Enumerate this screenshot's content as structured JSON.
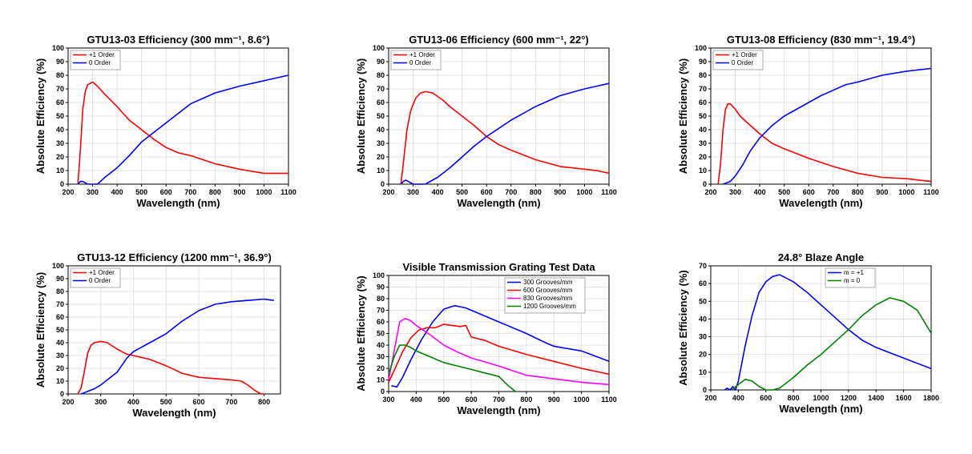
{
  "chart_data": [
    {
      "type": "line",
      "title": "GTU13-03 Efficiency (300 mm⁻¹, 8.6°)",
      "xlabel": "Wavelength (nm)",
      "ylabel": "Absolute Efficiency (%)",
      "xlim": [
        200,
        1100
      ],
      "ylim": [
        0,
        100
      ],
      "xticks": [
        200,
        300,
        400,
        500,
        600,
        700,
        800,
        900,
        1000,
        1100
      ],
      "yticks": [
        0,
        10,
        20,
        30,
        40,
        50,
        60,
        70,
        80,
        90,
        100
      ],
      "grid": true,
      "legend_position": "top-left",
      "series": [
        {
          "name": "+1 Order",
          "color": "#ff0000",
          "x": [
            240,
            250,
            260,
            270,
            280,
            300,
            320,
            350,
            400,
            450,
            500,
            550,
            600,
            650,
            700,
            750,
            800,
            900,
            1000,
            1050,
            1100
          ],
          "y": [
            0,
            25,
            55,
            68,
            73,
            75,
            72,
            66,
            57,
            47,
            40,
            33,
            27,
            23,
            21,
            18,
            15,
            11,
            8,
            8,
            8
          ]
        },
        {
          "name": "0 Order",
          "color": "#0000ff",
          "x": [
            240,
            250,
            260,
            270,
            280,
            300,
            320,
            350,
            400,
            450,
            500,
            550,
            600,
            650,
            700,
            750,
            800,
            900,
            1000,
            1050,
            1100
          ],
          "y": [
            0,
            2,
            2,
            1,
            0,
            0,
            0,
            5,
            12,
            21,
            31,
            38,
            45,
            52,
            59,
            63,
            67,
            72,
            76,
            78,
            80
          ]
        }
      ]
    },
    {
      "type": "line",
      "title": "GTU13-06 Efficiency (600 mm⁻¹, 22°)",
      "xlabel": "Wavelength (nm)",
      "ylabel": "Absolute Efficiency (%)",
      "xlim": [
        200,
        1100
      ],
      "ylim": [
        0,
        100
      ],
      "xticks": [
        200,
        300,
        400,
        500,
        600,
        700,
        800,
        900,
        1000,
        1100
      ],
      "yticks": [
        0,
        10,
        20,
        30,
        40,
        50,
        60,
        70,
        80,
        90,
        100
      ],
      "grid": true,
      "legend_position": "top-left",
      "series": [
        {
          "name": "+1 Order",
          "color": "#ff0000",
          "x": [
            250,
            260,
            275,
            290,
            310,
            330,
            350,
            380,
            420,
            450,
            500,
            550,
            600,
            650,
            700,
            800,
            900,
            1000,
            1050,
            1100
          ],
          "y": [
            0,
            15,
            40,
            54,
            63,
            67,
            68,
            67,
            62,
            57,
            50,
            43,
            35,
            29,
            25,
            18,
            13,
            11,
            10,
            8
          ]
        },
        {
          "name": "0 Order",
          "color": "#0000ff",
          "x": [
            250,
            260,
            270,
            280,
            300,
            330,
            350,
            400,
            450,
            500,
            550,
            600,
            650,
            700,
            800,
            900,
            1000,
            1050,
            1100
          ],
          "y": [
            0,
            2,
            3,
            2,
            0,
            0,
            0,
            5,
            12,
            20,
            28,
            35,
            41,
            47,
            57,
            65,
            70,
            72,
            74
          ]
        }
      ]
    },
    {
      "type": "line",
      "title": "GTU13-08 Efficiency (830 mm⁻¹, 19.4°)",
      "xlabel": "Wavelength (nm)",
      "ylabel": "Absolute Efficiency (%)",
      "xlim": [
        200,
        1100
      ],
      "ylim": [
        0,
        100
      ],
      "xticks": [
        200,
        300,
        400,
        500,
        600,
        700,
        800,
        900,
        1000,
        1100
      ],
      "yticks": [
        0,
        10,
        20,
        30,
        40,
        50,
        60,
        70,
        80,
        90,
        100
      ],
      "grid": true,
      "legend_position": "top-left",
      "series": [
        {
          "name": "+1 Order",
          "color": "#ff0000",
          "x": [
            230,
            240,
            250,
            260,
            270,
            280,
            300,
            320,
            350,
            400,
            450,
            500,
            600,
            700,
            800,
            900,
            1000,
            1050,
            1100
          ],
          "y": [
            0,
            15,
            40,
            55,
            59,
            59,
            55,
            50,
            45,
            37,
            30,
            26,
            19,
            13,
            8,
            5,
            4,
            3,
            2
          ]
        },
        {
          "name": "0 Order",
          "color": "#0000ff",
          "x": [
            250,
            280,
            300,
            330,
            360,
            400,
            450,
            500,
            550,
            600,
            650,
            700,
            750,
            800,
            900,
            1000,
            1050,
            1100
          ],
          "y": [
            0,
            2,
            6,
            14,
            24,
            34,
            43,
            50,
            55,
            60,
            65,
            69,
            73,
            75,
            80,
            83,
            84,
            85
          ]
        }
      ]
    },
    {
      "type": "line",
      "title": "GTU13-12 Efficiency (1200 mm⁻¹, 36.9°)",
      "xlabel": "Wavelength (nm)",
      "ylabel": "Absolute Efficiency (%)",
      "xlim": [
        200,
        850
      ],
      "ylim": [
        0,
        100
      ],
      "xticks": [
        200,
        300,
        400,
        500,
        600,
        700,
        800
      ],
      "yticks": [
        0,
        10,
        20,
        30,
        40,
        50,
        60,
        70,
        80,
        90,
        100
      ],
      "grid": true,
      "legend_position": "top-left",
      "series": [
        {
          "name": "+1 Order",
          "color": "#ff0000",
          "x": [
            230,
            240,
            250,
            260,
            270,
            280,
            300,
            320,
            350,
            380,
            400,
            450,
            500,
            550,
            600,
            650,
            700,
            730,
            750,
            770,
            790,
            800
          ],
          "y": [
            0,
            5,
            18,
            32,
            38,
            40,
            41,
            40,
            35,
            31,
            30,
            27,
            22,
            16,
            13,
            12,
            11,
            10,
            7,
            3,
            0,
            0
          ]
        },
        {
          "name": "0 Order",
          "color": "#0000ff",
          "x": [
            240,
            260,
            280,
            300,
            320,
            350,
            380,
            400,
            450,
            500,
            550,
            600,
            650,
            700,
            750,
            800,
            830
          ],
          "y": [
            0,
            2,
            4,
            7,
            11,
            17,
            28,
            33,
            40,
            47,
            57,
            65,
            70,
            72,
            73,
            74,
            73
          ]
        }
      ]
    },
    {
      "type": "line",
      "title": "Visible Transmission Grating Test Data",
      "xlabel": "Wavelength (nm)",
      "ylabel": "Absolute Efficiency (%)",
      "xlim": [
        300,
        1100
      ],
      "ylim": [
        0,
        100
      ],
      "xticks": [
        300,
        400,
        500,
        600,
        700,
        800,
        900,
        1000,
        1100
      ],
      "yticks": [
        0,
        10,
        20,
        30,
        40,
        50,
        60,
        70,
        80,
        90,
        100
      ],
      "grid": true,
      "legend_position": "top-right",
      "series": [
        {
          "name": "300 Grooves/mm",
          "color": "#0000ff",
          "x": [
            310,
            330,
            350,
            380,
            420,
            460,
            500,
            540,
            580,
            620,
            700,
            800,
            870,
            900,
            1000,
            1100
          ],
          "y": [
            5,
            4,
            12,
            27,
            45,
            60,
            71,
            74,
            72,
            68,
            60,
            50,
            42,
            39,
            35,
            26
          ]
        },
        {
          "name": "600 Grooves/mm",
          "color": "#ff0000",
          "x": [
            300,
            320,
            350,
            380,
            410,
            440,
            470,
            500,
            530,
            560,
            580,
            600,
            650,
            700,
            800,
            900,
            1000,
            1100
          ],
          "y": [
            8,
            18,
            34,
            46,
            53,
            55,
            55,
            58,
            57,
            56,
            57,
            47,
            44,
            39,
            32,
            26,
            20,
            15
          ]
        },
        {
          "name": "830 Grooves/mm",
          "color": "#ff00ff",
          "x": [
            300,
            320,
            340,
            360,
            380,
            400,
            450,
            500,
            550,
            600,
            700,
            800,
            900,
            1000,
            1100
          ],
          "y": [
            10,
            35,
            60,
            63,
            61,
            57,
            49,
            40,
            34,
            29,
            22,
            14,
            11,
            8,
            6
          ]
        },
        {
          "name": "1200 Grooves/mm",
          "color": "#008000",
          "x": [
            300,
            320,
            340,
            360,
            380,
            400,
            450,
            500,
            550,
            600,
            650,
            700,
            730,
            750,
            760
          ],
          "y": [
            15,
            30,
            40,
            40,
            38,
            35,
            30,
            25,
            22,
            19,
            16,
            13,
            6,
            2,
            0
          ]
        }
      ]
    },
    {
      "type": "line",
      "title": "24.8° Blaze Angle",
      "xlabel": "Wavelength (nm)",
      "ylabel": "Absolute Efficiency (%)",
      "xlim": [
        200,
        1800
      ],
      "ylim": [
        0,
        70
      ],
      "xticks": [
        200,
        400,
        600,
        800,
        1000,
        1200,
        1400,
        1600,
        1800
      ],
      "yticks": [
        0,
        10,
        20,
        30,
        40,
        50,
        60,
        70
      ],
      "grid": true,
      "legend_position": "top-right",
      "series": [
        {
          "name": "m = +1",
          "color": "#0000ff",
          "x": [
            300,
            320,
            340,
            360,
            380,
            400,
            450,
            500,
            550,
            600,
            650,
            700,
            800,
            900,
            1000,
            1100,
            1200,
            1300,
            1400,
            1500,
            1600,
            1700,
            1800
          ],
          "y": [
            0,
            1,
            0,
            2,
            0,
            5,
            25,
            42,
            55,
            61,
            64,
            65,
            61,
            55,
            48,
            41,
            34,
            28,
            24,
            21,
            18,
            15,
            12
          ]
        },
        {
          "name": "m = 0",
          "color": "#008000",
          "x": [
            350,
            400,
            450,
            500,
            550,
            600,
            650,
            700,
            800,
            900,
            1000,
            1100,
            1200,
            1300,
            1400,
            1500,
            1600,
            1700,
            1800
          ],
          "y": [
            0,
            3,
            6,
            5,
            2,
            0,
            0,
            1,
            7,
            14,
            20,
            27,
            34,
            42,
            48,
            52,
            50,
            45,
            32
          ]
        }
      ]
    }
  ]
}
